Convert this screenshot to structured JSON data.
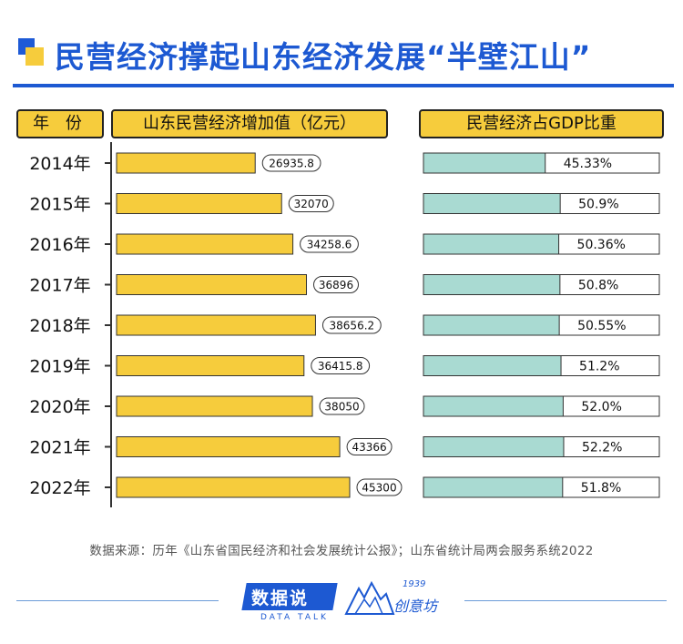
{
  "title": "民营经济撑起山东经济发展“半壁江山”",
  "headers": {
    "year": "年 份",
    "value": "山东民营经济增加值（亿元）",
    "share": "民营经济占GDP比重"
  },
  "chart_data": {
    "type": "bar",
    "categories": [
      "2014年",
      "2015年",
      "2016年",
      "2017年",
      "2018年",
      "2019年",
      "2020年",
      "2021年",
      "2022年"
    ],
    "series": [
      {
        "name": "山东民营经济增加值（亿元）",
        "values": [
          26935.8,
          32070,
          34258.6,
          36896,
          38656.2,
          36415.8,
          38050,
          43366,
          45300
        ],
        "labels": [
          "26935.8",
          "32070",
          "34258.6",
          "36896",
          "38656.2",
          "36415.8",
          "38050",
          "43366",
          "45300"
        ],
        "color": "#f6cc3c"
      },
      {
        "name": "民营经济占GDP比重",
        "values": [
          45.33,
          50.9,
          50.36,
          50.8,
          50.55,
          51.2,
          52.0,
          52.2,
          51.8
        ],
        "labels": [
          "45.33%",
          "50.9%",
          "50.36%",
          "50.8%",
          "50.55%",
          "51.2%",
          "52.0%",
          "52.2%",
          "51.8%"
        ],
        "color": "#a9dad2"
      }
    ]
  },
  "source": "数据来源：历年《山东省国民经济和社会发展统计公报》；山东省统计局两会服务系统2022",
  "footer": {
    "brand_cn": "数据说",
    "brand_en": "DATA TALK",
    "brand2_year": "1939",
    "brand2_cn": "创意坊"
  }
}
